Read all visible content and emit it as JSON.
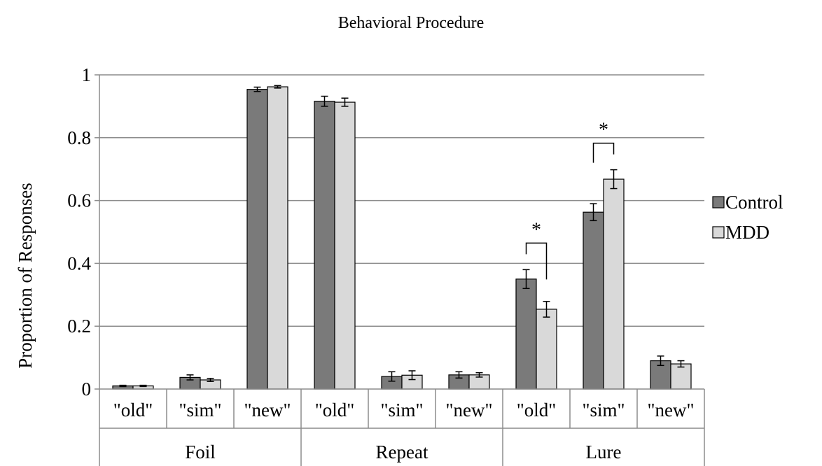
{
  "chart_data": {
    "type": "bar",
    "title": "Behavioral Procedure",
    "ylabel": "Proportion of Responses",
    "xlabel": "",
    "ylim": [
      0,
      1
    ],
    "yticks": [
      "0",
      "0.2",
      "0.4",
      "0.6",
      "0.8",
      "1"
    ],
    "ytick_values": [
      0,
      0.2,
      0.4,
      0.6,
      0.8,
      1
    ],
    "grid": true,
    "legend_position": "right",
    "groups": [
      {
        "label": "Foil",
        "categories": [
          "\"old\"",
          "\"sim\"",
          "\"new\""
        ]
      },
      {
        "label": "Repeat",
        "categories": [
          "\"old\"",
          "\"sim\"",
          "\"new\""
        ]
      },
      {
        "label": "Lure",
        "categories": [
          "\"old\"",
          "\"sim\"",
          "\"new\""
        ]
      }
    ],
    "series": [
      {
        "name": "Control",
        "color": "#7a7a7a",
        "values": [
          0.01,
          0.037,
          0.954,
          0.916,
          0.04,
          0.045,
          0.35,
          0.563,
          0.09
        ],
        "errors": [
          0.002,
          0.008,
          0.007,
          0.016,
          0.015,
          0.01,
          0.03,
          0.027,
          0.015
        ]
      },
      {
        "name": "MDD",
        "color": "#d9d9d9",
        "values": [
          0.01,
          0.029,
          0.962,
          0.913,
          0.044,
          0.045,
          0.254,
          0.668,
          0.08
        ],
        "errors": [
          0.002,
          0.005,
          0.004,
          0.013,
          0.014,
          0.007,
          0.025,
          0.03,
          0.01
        ]
      }
    ],
    "annotations": [
      {
        "label": "*",
        "category_index": 6
      },
      {
        "label": "*",
        "category_index": 7
      }
    ]
  }
}
